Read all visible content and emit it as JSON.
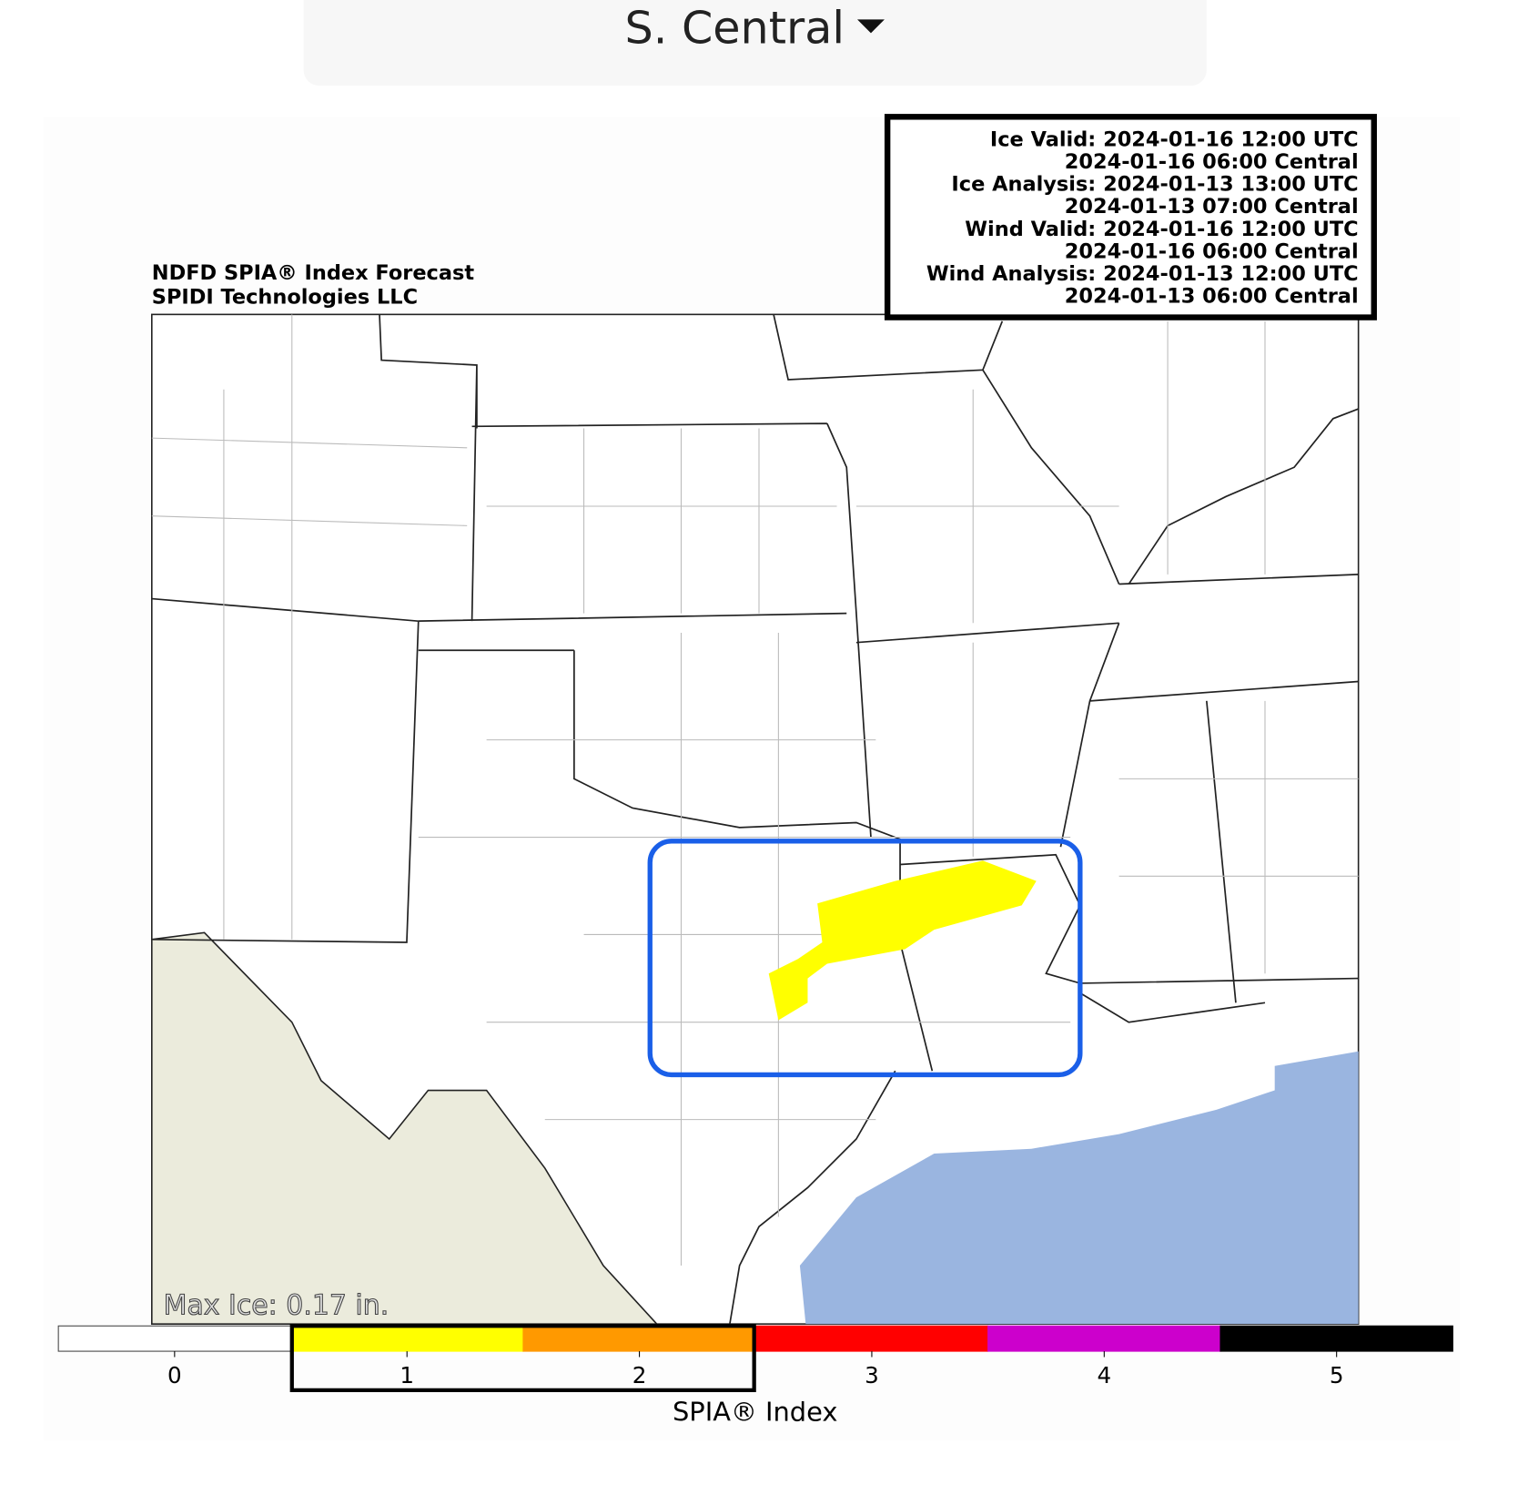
{
  "dropdown": {
    "label": "S. Central"
  },
  "info_box": {
    "lines": [
      "Ice Valid: 2024-01-16 12:00 UTC",
      "2024-01-16 06:00 Central",
      "Ice Analysis: 2024-01-13 13:00 UTC",
      "2024-01-13 07:00 Central",
      "Wind Valid: 2024-01-16 12:00 UTC",
      "2024-01-16 06:00 Central",
      "Wind Analysis: 2024-01-13 12:00 UTC",
      "2024-01-13 06:00 Central"
    ]
  },
  "map": {
    "title_lines": [
      "NDFD SPIA® Index Forecast",
      "SPIDI Technologies LLC"
    ],
    "max_ice": "Max Ice: 0.17 in."
  },
  "colorbar": {
    "label": "SPIA® Index",
    "ticks": [
      0,
      1,
      2,
      3,
      4,
      5
    ],
    "colors": [
      "#ffffff",
      "#ffff00",
      "#ff9900",
      "#ff0000",
      "#cc00cc",
      "#000000"
    ]
  }
}
